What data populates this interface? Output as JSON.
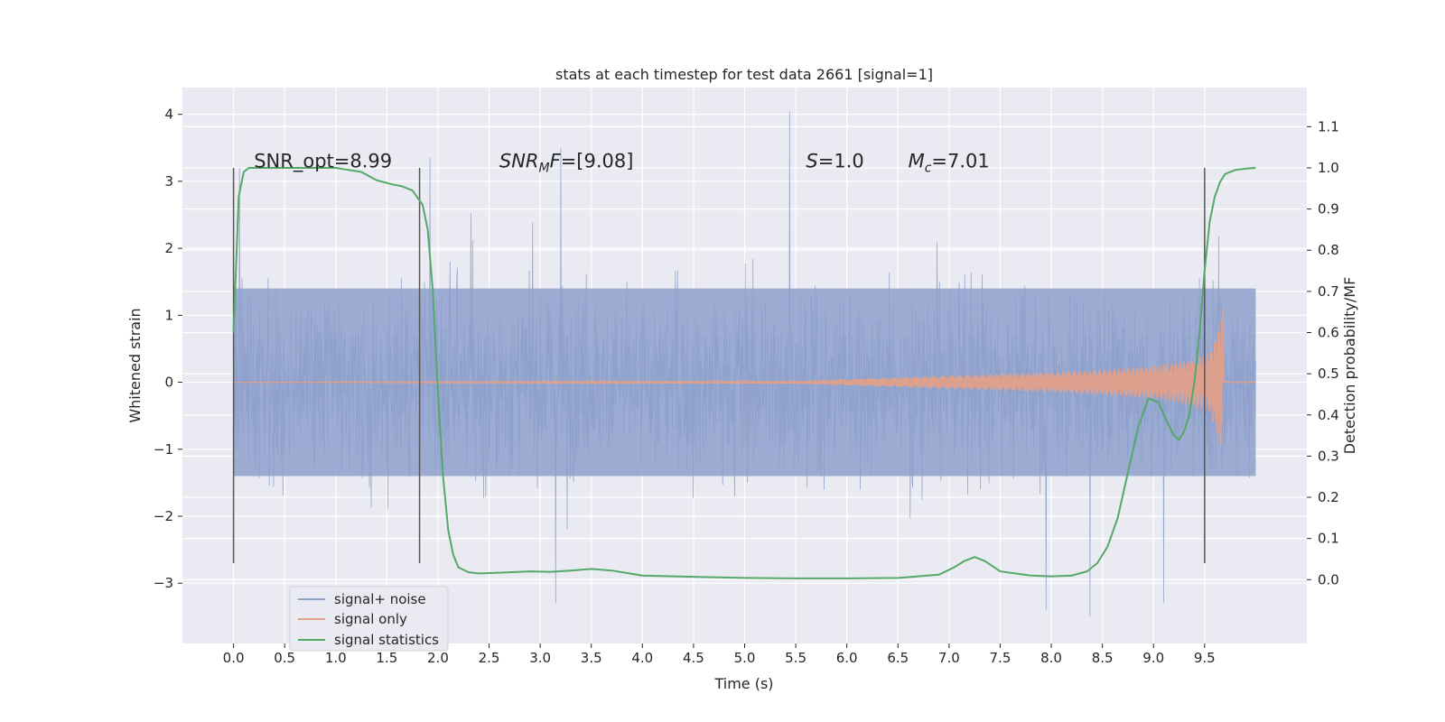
{
  "chart_data": {
    "type": "line",
    "title": "stats at each timestep for test data 2661 [signal=1]",
    "xlabel": "Time (s)",
    "ylabel": "Whitened strain",
    "y2label": "Detection probability/MF",
    "xlim": [
      -0.5,
      10.5
    ],
    "ylim": [
      -3.9,
      4.4
    ],
    "y2lim": [
      -0.155,
      1.195
    ],
    "xticks": [
      0.0,
      0.5,
      1.0,
      1.5,
      2.0,
      2.5,
      3.0,
      3.5,
      4.0,
      4.5,
      5.0,
      5.5,
      6.0,
      6.5,
      7.0,
      7.5,
      8.0,
      8.5,
      9.0,
      9.5
    ],
    "xtick_labels": [
      "0.0",
      "0.5",
      "1.0",
      "1.5",
      "2.0",
      "2.5",
      "3.0",
      "3.5",
      "4.0",
      "4.5",
      "5.0",
      "5.5",
      "6.0",
      "6.5",
      "7.0",
      "7.5",
      "8.0",
      "8.5",
      "9.0",
      "9.5"
    ],
    "yticks": [
      -3,
      -2,
      -1,
      0,
      1,
      2,
      3,
      4
    ],
    "ytick_labels": [
      "−3",
      "−2",
      "−1",
      "0",
      "1",
      "2",
      "3",
      "4"
    ],
    "y2ticks": [
      0.0,
      0.1,
      0.2,
      0.3,
      0.4,
      0.5,
      0.6,
      0.7,
      0.8,
      0.9,
      1.0,
      1.1
    ],
    "y2tick_labels": [
      "0.0",
      "0.1",
      "0.2",
      "0.3",
      "0.4",
      "0.5",
      "0.6",
      "0.7",
      "0.8",
      "0.9",
      "1.0",
      "1.1"
    ],
    "grid": true,
    "legend_position": "lower-left",
    "annotations": [
      {
        "text": "SNR_opt=8.99",
        "x": 0.2,
        "y": 3.3
      },
      {
        "text": "SNR_MF=[9.08]",
        "x": 2.6,
        "y": 3.3
      },
      {
        "text": "S=1.0",
        "x": 5.6,
        "y": 3.3
      },
      {
        "text": "M_c=7.01",
        "x": 6.6,
        "y": 3.3
      }
    ],
    "vlines": [
      0.0,
      1.82,
      9.5
    ],
    "vline_range": [
      -2.7,
      3.2
    ],
    "series": [
      {
        "name": "signal+ noise",
        "color": "#8da0cb",
        "axis": "left",
        "kind": "noise",
        "x_range": [
          0.0,
          10.0
        ],
        "envelope_core": 1.4,
        "observed_max": 4.05,
        "observed_min": -3.5,
        "peaks": [
          {
            "x": 5.44,
            "y": 4.05
          },
          {
            "x": 1.92,
            "y": 3.35
          },
          {
            "x": 3.2,
            "y": 3.5
          },
          {
            "x": 0.06,
            "y": 3.2
          },
          {
            "x": 7.95,
            "y": -3.4
          },
          {
            "x": 8.38,
            "y": -3.5
          },
          {
            "x": 9.1,
            "y": -3.3
          },
          {
            "x": 3.15,
            "y": -3.3
          }
        ]
      },
      {
        "name": "signal only",
        "color": "#e5a086",
        "axis": "left",
        "kind": "chirp",
        "x_range": [
          0.0,
          10.0
        ],
        "merger_x": 9.68,
        "peak_amplitude": 1.1,
        "envelope": [
          [
            0.0,
            0.003
          ],
          [
            5.5,
            0.02
          ],
          [
            7.0,
            0.1
          ],
          [
            8.0,
            0.15
          ],
          [
            8.5,
            0.19
          ],
          [
            9.0,
            0.25
          ],
          [
            9.3,
            0.32
          ],
          [
            9.55,
            0.45
          ],
          [
            9.68,
            1.1
          ]
        ]
      },
      {
        "name": "signal statistics",
        "color": "#55a868",
        "axis": "right",
        "kind": "line",
        "x": [
          0.0,
          0.05,
          0.1,
          0.15,
          0.25,
          0.5,
          1.0,
          1.25,
          1.4,
          1.55,
          1.65,
          1.75,
          1.85,
          1.9,
          1.95,
          2.0,
          2.05,
          2.1,
          2.15,
          2.2,
          2.3,
          2.4,
          2.5,
          2.7,
          2.9,
          3.1,
          3.3,
          3.5,
          3.7,
          4.0,
          4.5,
          5.0,
          5.5,
          6.0,
          6.5,
          6.9,
          7.05,
          7.15,
          7.25,
          7.35,
          7.5,
          7.8,
          8.0,
          8.2,
          8.35,
          8.45,
          8.55,
          8.65,
          8.75,
          8.85,
          8.95,
          9.05,
          9.12,
          9.2,
          9.25,
          9.3,
          9.35,
          9.4,
          9.45,
          9.5,
          9.55,
          9.6,
          9.65,
          9.7,
          9.8,
          9.9,
          10.0
        ],
        "y": [
          0.6,
          0.93,
          0.99,
          1.0,
          1.0,
          1.0,
          1.0,
          0.99,
          0.97,
          0.96,
          0.955,
          0.945,
          0.91,
          0.85,
          0.7,
          0.45,
          0.25,
          0.12,
          0.06,
          0.03,
          0.018,
          0.015,
          0.016,
          0.018,
          0.02,
          0.019,
          0.022,
          0.026,
          0.022,
          0.01,
          0.007,
          0.004,
          0.003,
          0.003,
          0.004,
          0.012,
          0.03,
          0.045,
          0.055,
          0.045,
          0.02,
          0.01,
          0.008,
          0.01,
          0.02,
          0.04,
          0.08,
          0.15,
          0.26,
          0.37,
          0.44,
          0.43,
          0.39,
          0.35,
          0.34,
          0.36,
          0.4,
          0.48,
          0.6,
          0.75,
          0.87,
          0.93,
          0.965,
          0.985,
          0.995,
          0.998,
          1.0
        ]
      }
    ]
  }
}
